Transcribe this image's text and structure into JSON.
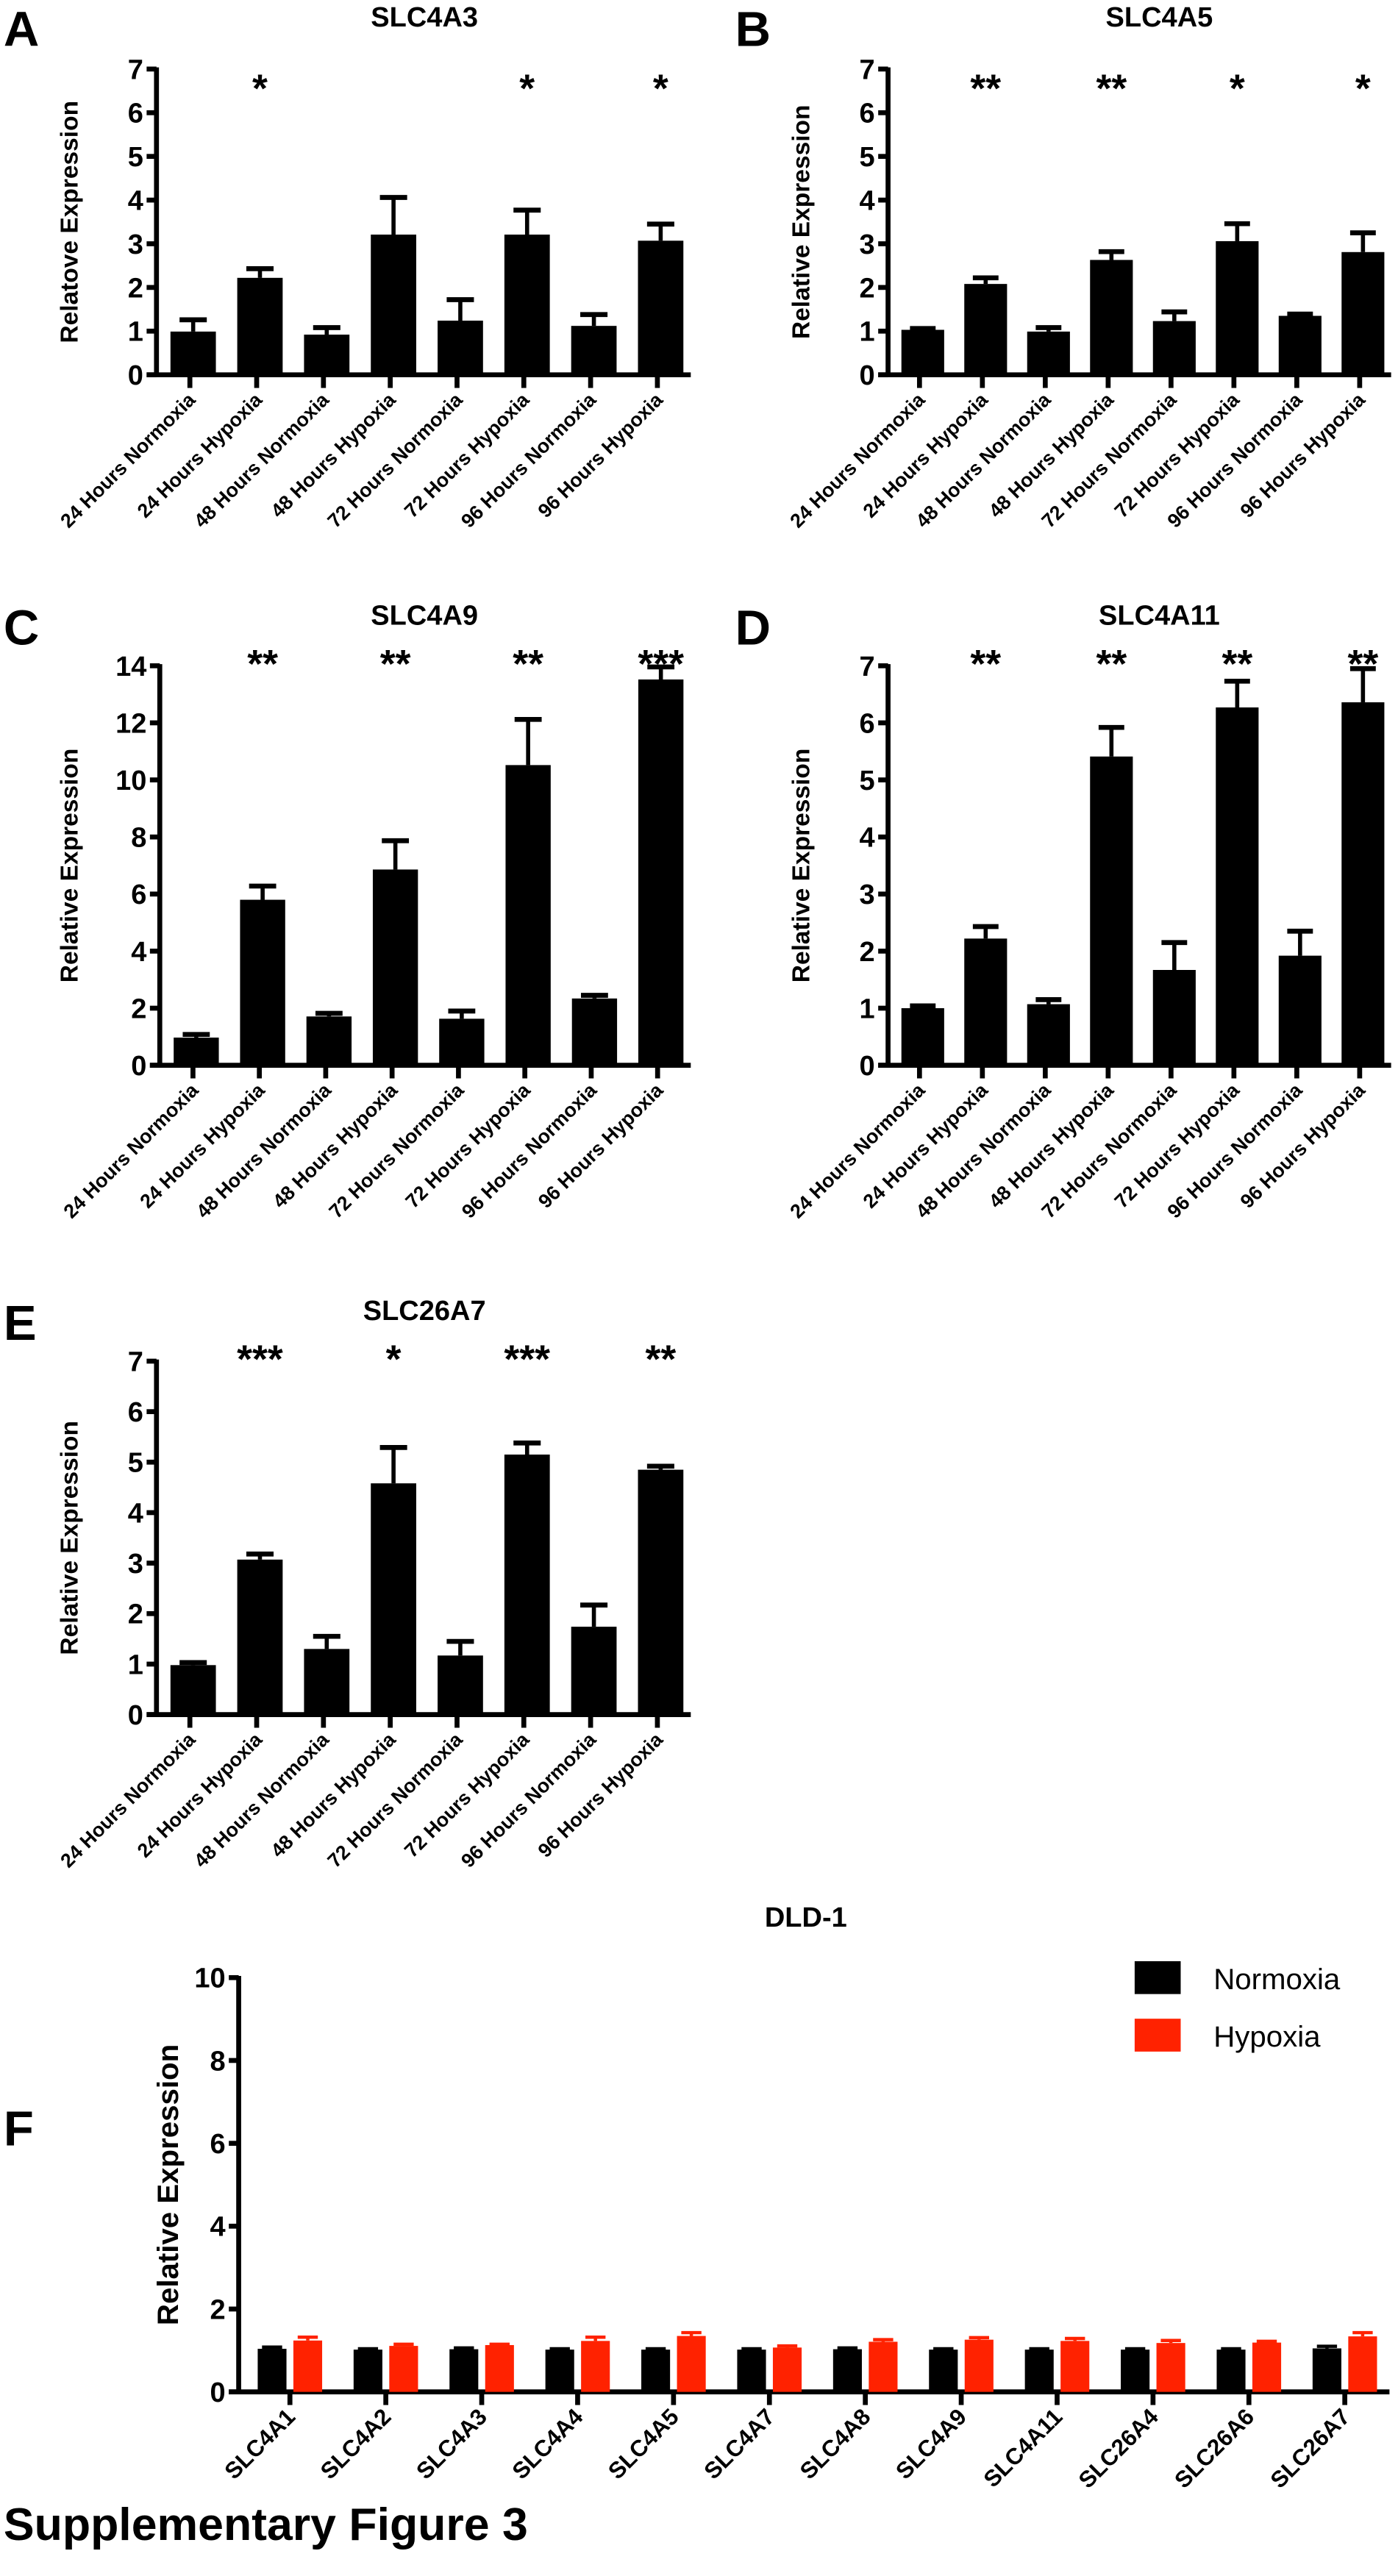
{
  "figure_title": "Supplementary Figure 3",
  "colors": {
    "normoxia": "#000000",
    "hypoxia": "#ff2200",
    "bar": "#000000"
  },
  "chart_data": [
    {
      "panel": "A",
      "type": "bar",
      "title": "SLC4A3",
      "ylabel": "Relatove  Expression",
      "ylim": [
        0,
        7
      ],
      "yticks": [
        0,
        1,
        2,
        3,
        4,
        5,
        6,
        7
      ],
      "grid": false,
      "categories": [
        "24 Hours Normoxia",
        "24 Hours Hypoxia",
        "48 Hours Normoxia",
        "48 Hours Hypoxia",
        "72 Hours Normoxia",
        "72 Hours Hypoxia",
        "96 Hours Normoxia",
        "96 Hours Hypoxia"
      ],
      "values": [
        0.99,
        2.22,
        0.92,
        3.21,
        1.24,
        3.21,
        1.12,
        3.07
      ],
      "errors": [
        0.27,
        0.21,
        0.16,
        0.85,
        0.48,
        0.56,
        0.26,
        0.38
      ],
      "significance": [
        "",
        "*",
        "",
        "",
        "",
        "*",
        "",
        "*"
      ]
    },
    {
      "panel": "B",
      "type": "bar",
      "title": "SLC4A5",
      "ylabel": "Relative Expression",
      "ylim": [
        0,
        7
      ],
      "yticks": [
        0,
        1,
        2,
        3,
        4,
        5,
        6,
        7
      ],
      "grid": false,
      "categories": [
        "24 Hours Normoxia",
        "24 Hours Hypoxia",
        "48 Hours Normoxia",
        "48 Hours Hypoxia",
        "72 Hours Normoxia",
        "72 Hours Hypoxia",
        "96 Hours Normoxia",
        "96 Hours Hypoxia"
      ],
      "values": [
        1.03,
        2.08,
        0.99,
        2.63,
        1.23,
        3.06,
        1.35,
        2.81
      ],
      "errors": [
        0.03,
        0.14,
        0.09,
        0.19,
        0.21,
        0.4,
        0.04,
        0.44
      ],
      "significance": [
        "",
        "**",
        "",
        "**",
        "",
        "*",
        "",
        "*"
      ]
    },
    {
      "panel": "C",
      "type": "bar",
      "title": "SLC4A9",
      "ylabel": "Relative Expression",
      "ylim": [
        0,
        14
      ],
      "yticks": [
        0,
        2,
        4,
        6,
        8,
        10,
        12,
        14
      ],
      "grid": false,
      "categories": [
        "24 Hours Normoxia",
        "24 Hours Hypoxia",
        "48 Hours Normoxia",
        "48 Hours Hypoxia",
        "72 Hours Normoxia",
        "72 Hours Hypoxia",
        "96 Hours Normoxia",
        "96 Hours Hypoxia"
      ],
      "values": [
        0.97,
        5.8,
        1.71,
        6.86,
        1.63,
        10.52,
        2.34,
        13.52
      ],
      "errors": [
        0.11,
        0.48,
        0.11,
        1.01,
        0.27,
        1.6,
        0.11,
        0.44
      ],
      "significance": [
        "",
        "**",
        "",
        "**",
        "",
        "**",
        "",
        "***"
      ]
    },
    {
      "panel": "D",
      "type": "bar",
      "title": "SLC4A11",
      "ylabel": "Relative Expression",
      "ylim": [
        0,
        7
      ],
      "yticks": [
        0,
        1,
        2,
        3,
        4,
        5,
        6,
        7
      ],
      "grid": false,
      "categories": [
        "24 Hours Normoxia",
        "24 Hours Hypoxia",
        "48 Hours Normoxia",
        "48 Hours Hypoxia",
        "72 Hours Normoxia",
        "72 Hours Hypoxia",
        "96 Hours Normoxia",
        "96 Hours Hypoxia"
      ],
      "values": [
        1.0,
        2.22,
        1.07,
        5.41,
        1.67,
        6.27,
        1.92,
        6.36
      ],
      "errors": [
        0.04,
        0.21,
        0.08,
        0.51,
        0.48,
        0.46,
        0.43,
        0.59
      ],
      "significance": [
        "",
        "**",
        "",
        "**",
        "",
        "**",
        "",
        "**"
      ]
    },
    {
      "panel": "E",
      "type": "bar",
      "title": "SLC26A7",
      "ylabel": "Relative Expression",
      "ylim": [
        0,
        7
      ],
      "yticks": [
        0,
        1,
        2,
        3,
        4,
        5,
        6,
        7
      ],
      "grid": false,
      "categories": [
        "24 Hours Normoxia",
        "24 Hours Hypoxia",
        "48 Hours Normoxia",
        "48 Hours Hypoxia",
        "72 Hours Normoxia",
        "72 Hours Hypoxia",
        "96 Hours Normoxia",
        "96 Hours Hypoxia"
      ],
      "values": [
        0.98,
        3.07,
        1.3,
        4.58,
        1.17,
        5.15,
        1.74,
        4.85
      ],
      "errors": [
        0.05,
        0.11,
        0.25,
        0.71,
        0.28,
        0.23,
        0.43,
        0.07
      ],
      "significance": [
        "",
        "***",
        "",
        "*",
        "",
        "***",
        "",
        "**"
      ]
    },
    {
      "panel": "F",
      "type": "bar",
      "title": "DLD-1",
      "ylabel": "Relative Expression",
      "ylim": [
        0,
        10
      ],
      "yticks": [
        0,
        2,
        4,
        6,
        8,
        10
      ],
      "grid": false,
      "legend": "top-right",
      "categories": [
        "SLC4A1",
        "SLC4A2",
        "SLC4A3",
        "SLC4A4",
        "SLC4A5",
        "SLC4A7",
        "SLC4A8",
        "SLC4A9",
        "SLC4A11",
        "SLC26A4",
        "SLC26A6",
        "SLC26A7"
      ],
      "series": [
        {
          "name": "Normoxia",
          "color": "#000000",
          "values": [
            1.04,
            1.02,
            1.03,
            1.02,
            1.02,
            1.02,
            1.03,
            1.02,
            1.02,
            1.02,
            1.02,
            1.05
          ],
          "errors": [
            0.04,
            0.02,
            0.03,
            0.02,
            0.02,
            0.02,
            0.03,
            0.02,
            0.02,
            0.02,
            0.02,
            0.05
          ]
        },
        {
          "name": "Hypoxia",
          "color": "#ff2200",
          "values": [
            1.24,
            1.11,
            1.13,
            1.23,
            1.35,
            1.07,
            1.21,
            1.26,
            1.23,
            1.18,
            1.19,
            1.34
          ],
          "errors": [
            0.08,
            0.04,
            0.02,
            0.09,
            0.08,
            0.04,
            0.05,
            0.05,
            0.06,
            0.06,
            0.03,
            0.09
          ]
        }
      ]
    }
  ]
}
